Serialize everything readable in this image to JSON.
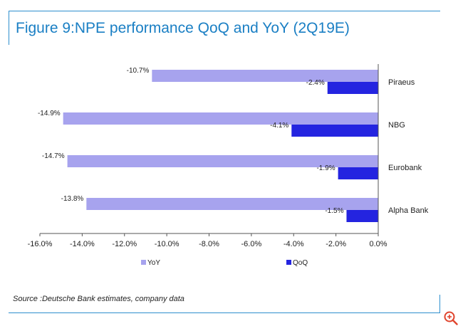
{
  "title": "Figure 9:NPE performance QoQ and YoY (2Q19E)",
  "source": "Source :Deutsche Bank estimates, company data",
  "colors": {
    "yoy": "#a7a3ee",
    "qoq": "#2424e0",
    "accent": "#2e8fce",
    "title": "#1a7fc4"
  },
  "icons": {
    "zoom": "zoom-in-icon"
  },
  "chart_data": {
    "type": "bar",
    "orientation": "horizontal",
    "categories": [
      "Piraeus",
      "NBG",
      "Eurobank",
      "Alpha Bank"
    ],
    "series": [
      {
        "name": "YoY",
        "values": [
          -10.7,
          -14.9,
          -14.7,
          -13.8
        ],
        "labels": [
          "-10.7%",
          "-14.9%",
          "-14.7%",
          "-13.8%"
        ]
      },
      {
        "name": "QoQ",
        "values": [
          -2.4,
          -4.1,
          -1.9,
          -1.5
        ],
        "labels": [
          "-2.4%",
          "-4.1%",
          "-1.9%",
          "-1.5%"
        ]
      }
    ],
    "xlim": [
      -16,
      0
    ],
    "xticks": [
      -16,
      -14,
      -12,
      -10,
      -8,
      -6,
      -4,
      -2,
      0
    ],
    "xtick_labels": [
      "-16.0%",
      "-14.0%",
      "-12.0%",
      "-10.0%",
      "-8.0%",
      "-6.0%",
      "-4.0%",
      "-2.0%",
      "0.0%"
    ],
    "grid": false,
    "legend": "bottom"
  }
}
